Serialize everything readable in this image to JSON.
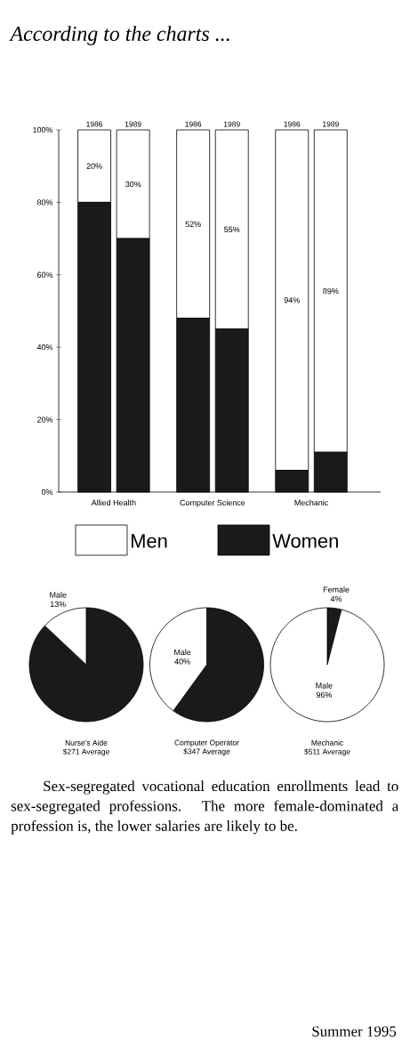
{
  "chart_data": [
    {
      "type": "bar",
      "title": "According to the charts ...",
      "categories": [
        "1986",
        "1989",
        "1986",
        "1989",
        "1986",
        "1989"
      ],
      "stacked": true,
      "series": [
        {
          "name": "Women",
          "color": "#1a1a1a",
          "values": [
            80,
            70,
            48,
            45,
            6,
            11
          ]
        },
        {
          "name": "Men",
          "color": "#ffffff",
          "values": [
            20,
            30,
            52,
            55,
            94,
            89
          ],
          "value_labels": [
            "20%",
            "30%",
            "52%",
            "55%",
            "94%",
            "89%"
          ]
        }
      ],
      "ylim": [
        0,
        100
      ],
      "yticks": [
        {
          "value": 0,
          "label": "0%"
        },
        {
          "value": 20,
          "label": "20%"
        },
        {
          "value": 40,
          "label": "40%"
        },
        {
          "value": 60,
          "label": "60%"
        },
        {
          "value": 80,
          "label": "80%"
        },
        {
          "value": 100,
          "label": "100%"
        }
      ],
      "legend": "bottom",
      "annotations": [
        "Allied Health",
        "Computer Science",
        "Mechanic",
        "Sex-segregated vocational education enrollments lead to sex-segregated professions. The more female-dominated a profession is, the lower salaries are likely to be.",
        "Summer 1995"
      ]
    },
    {
      "type": "pie",
      "title": "Nurse's Aide",
      "subtitle": "$271 Average",
      "categories": [
        null,
        "Male"
      ],
      "values": [
        87,
        13
      ],
      "colors": [
        "#1a1a1a",
        "#ffffff"
      ],
      "value_labels": [
        null,
        "13%"
      ]
    },
    {
      "type": "pie",
      "title": "Computer Operator",
      "subtitle": "$347 Average",
      "categories": [
        null,
        "Male"
      ],
      "values": [
        60,
        40
      ],
      "colors": [
        "#1a1a1a",
        "#ffffff"
      ],
      "value_labels": [
        null,
        "40%"
      ]
    },
    {
      "type": "pie",
      "title": "Mechanic",
      "subtitle": "$511 Average",
      "categories": [
        "Female",
        "Male"
      ],
      "values": [
        4,
        96
      ],
      "colors": [
        "#1a1a1a",
        "#ffffff"
      ],
      "value_labels": [
        "4%",
        "96%"
      ]
    }
  ]
}
